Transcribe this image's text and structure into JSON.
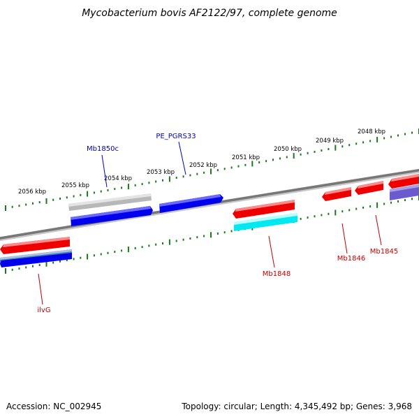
{
  "title": "Mycobacterium bovis AF2122/97, complete genome",
  "footer": {
    "accession": "Accession: NC_002945",
    "summary": "Topology: circular; Length: 4,345,492 bp; Genes: 3,968"
  },
  "kbp_labels": [
    "2056 kbp",
    "2055 kbp",
    "2054 kbp",
    "2053 kbp",
    "2052 kbp",
    "2051 kbp",
    "2050 kbp",
    "2049 kbp",
    "2048 kbp"
  ],
  "genes": {
    "forward": [
      "Mb1850c",
      "PE_PGRS33"
    ],
    "reverse": [
      "ilvG",
      "Mb1848",
      "Mb1846",
      "Mb1845"
    ]
  },
  "colors": {
    "forward_label": "#0000c0",
    "reverse_label": "#c00000",
    "tick": "#1a7a1a",
    "backbone": "#808080",
    "red": "#ee0000",
    "blue": "#0000ee",
    "cyan": "#00e8f0",
    "grey": "#b8b8b8",
    "steel": "#4f7fb0",
    "slate": "#6a5acd"
  }
}
